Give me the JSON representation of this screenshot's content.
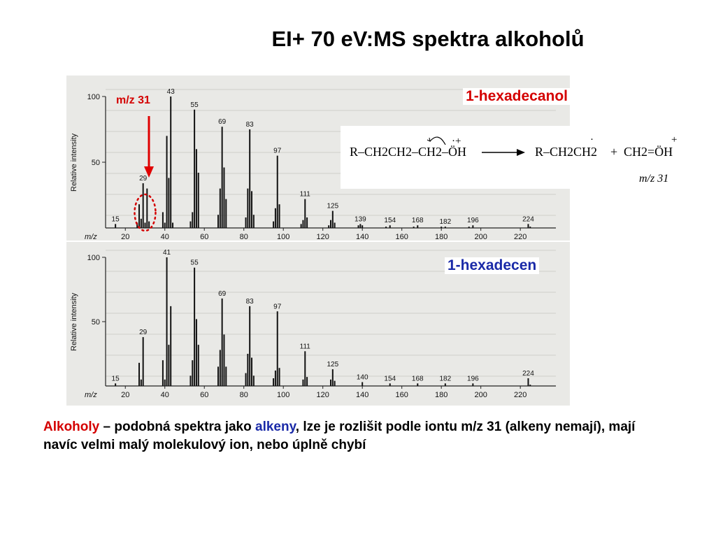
{
  "title": "EI+ 70 eV:MS spektra alkoholů",
  "colors": {
    "red": "#d40000",
    "blue": "#1a2aa8"
  },
  "annotation": {
    "mz31_label": "m/z 31"
  },
  "scheme": {
    "left": "R–CH2CH2–CH2–ÖH",
    "right1": "R–CH2CH2",
    "plus_sign": "+",
    "right2": "CH2=ÖH",
    "product_label": "m/z 31"
  },
  "chart_data": [
    {
      "type": "bar",
      "compound": "1-hexadecanol",
      "ylabel": "Relative intensity",
      "xlabel": "m/z",
      "xlim": [
        10,
        238
      ],
      "ylim": [
        0,
        100
      ],
      "x_ticks": [
        20,
        40,
        60,
        80,
        100,
        120,
        140,
        160,
        180,
        200,
        220
      ],
      "y_ticks": [
        50,
        100
      ],
      "peak_labels": [
        {
          "x": 15,
          "label": "15"
        },
        {
          "x": 29,
          "label": "29"
        },
        {
          "x": 43,
          "label": "43"
        },
        {
          "x": 55,
          "label": "55"
        },
        {
          "x": 69,
          "label": "69"
        },
        {
          "x": 83,
          "label": "83"
        },
        {
          "x": 97,
          "label": "97"
        },
        {
          "x": 111,
          "label": "111"
        },
        {
          "x": 125,
          "label": "125"
        },
        {
          "x": 139,
          "label": "139"
        },
        {
          "x": 154,
          "label": "154"
        },
        {
          "x": 168,
          "label": "168"
        },
        {
          "x": 182,
          "label": "182"
        },
        {
          "x": 196,
          "label": "196"
        },
        {
          "x": 224,
          "label": "224"
        }
      ],
      "peaks": [
        [
          15,
          3
        ],
        [
          26,
          4
        ],
        [
          27,
          18
        ],
        [
          28,
          7
        ],
        [
          29,
          34
        ],
        [
          30,
          4
        ],
        [
          31,
          30
        ],
        [
          32,
          5
        ],
        [
          39,
          12
        ],
        [
          40,
          4
        ],
        [
          41,
          70
        ],
        [
          42,
          38
        ],
        [
          43,
          100
        ],
        [
          44,
          4
        ],
        [
          53,
          5
        ],
        [
          54,
          12
        ],
        [
          55,
          90
        ],
        [
          56,
          60
        ],
        [
          57,
          42
        ],
        [
          67,
          10
        ],
        [
          68,
          30
        ],
        [
          69,
          77
        ],
        [
          70,
          46
        ],
        [
          71,
          22
        ],
        [
          81,
          8
        ],
        [
          82,
          30
        ],
        [
          83,
          75
        ],
        [
          84,
          28
        ],
        [
          85,
          10
        ],
        [
          95,
          5
        ],
        [
          96,
          15
        ],
        [
          97,
          55
        ],
        [
          98,
          18
        ],
        [
          109,
          3
        ],
        [
          110,
          6
        ],
        [
          111,
          22
        ],
        [
          112,
          8
        ],
        [
          123,
          2
        ],
        [
          124,
          6
        ],
        [
          125,
          13
        ],
        [
          126,
          4
        ],
        [
          138,
          2
        ],
        [
          139,
          3
        ],
        [
          140,
          2
        ],
        [
          152,
          1
        ],
        [
          154,
          2
        ],
        [
          166,
          1
        ],
        [
          168,
          2
        ],
        [
          180,
          1
        ],
        [
          182,
          1
        ],
        [
          194,
          1
        ],
        [
          196,
          2
        ],
        [
          224,
          3
        ],
        [
          225,
          1
        ]
      ]
    },
    {
      "type": "bar",
      "compound": "1-hexadecen",
      "ylabel": "Relative intensity",
      "xlabel": "m/z",
      "xlim": [
        10,
        238
      ],
      "ylim": [
        0,
        100
      ],
      "x_ticks": [
        20,
        40,
        60,
        80,
        100,
        120,
        140,
        160,
        180,
        200,
        220
      ],
      "y_ticks": [
        50,
        100
      ],
      "peak_labels": [
        {
          "x": 15,
          "label": "15"
        },
        {
          "x": 29,
          "label": "29"
        },
        {
          "x": 41,
          "label": "41"
        },
        {
          "x": 55,
          "label": "55"
        },
        {
          "x": 69,
          "label": "69"
        },
        {
          "x": 83,
          "label": "83"
        },
        {
          "x": 97,
          "label": "97"
        },
        {
          "x": 111,
          "label": "111"
        },
        {
          "x": 125,
          "label": "125"
        },
        {
          "x": 140,
          "label": "140"
        },
        {
          "x": 154,
          "label": "154"
        },
        {
          "x": 168,
          "label": "168"
        },
        {
          "x": 182,
          "label": "182"
        },
        {
          "x": 196,
          "label": "196"
        },
        {
          "x": 224,
          "label": "224"
        }
      ],
      "peaks": [
        [
          15,
          2
        ],
        [
          27,
          18
        ],
        [
          28,
          5
        ],
        [
          29,
          38
        ],
        [
          39,
          20
        ],
        [
          40,
          5
        ],
        [
          41,
          100
        ],
        [
          42,
          32
        ],
        [
          43,
          62
        ],
        [
          53,
          8
        ],
        [
          54,
          20
        ],
        [
          55,
          92
        ],
        [
          56,
          52
        ],
        [
          57,
          32
        ],
        [
          67,
          15
        ],
        [
          68,
          28
        ],
        [
          69,
          68
        ],
        [
          70,
          40
        ],
        [
          71,
          15
        ],
        [
          81,
          10
        ],
        [
          82,
          25
        ],
        [
          83,
          62
        ],
        [
          84,
          22
        ],
        [
          85,
          8
        ],
        [
          95,
          6
        ],
        [
          96,
          12
        ],
        [
          97,
          58
        ],
        [
          98,
          14
        ],
        [
          110,
          5
        ],
        [
          111,
          27
        ],
        [
          112,
          7
        ],
        [
          124,
          5
        ],
        [
          125,
          13
        ],
        [
          126,
          4
        ],
        [
          140,
          3
        ],
        [
          154,
          2
        ],
        [
          168,
          2
        ],
        [
          182,
          2
        ],
        [
          196,
          2
        ],
        [
          224,
          6
        ],
        [
          225,
          1
        ]
      ]
    }
  ],
  "caption": {
    "alkoholy": "Alkoholy",
    "part1": " – podobná spektra jako ",
    "alkeny": "alkeny",
    "part2": ", lze je rozlišit podle iontu m/z 31 (alkeny nemají), mají navíc velmi malý molekulový ion, nebo úplně chybí"
  }
}
